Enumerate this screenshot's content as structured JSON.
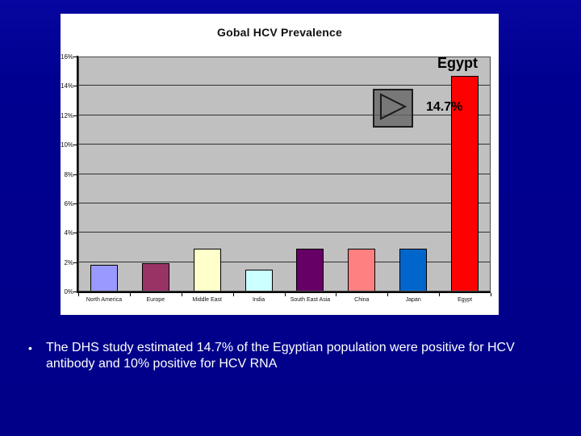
{
  "slide": {
    "background_color": "#000090",
    "bullet": {
      "marker": "•",
      "text": "The DHS study estimated 14.7% of the Egyptian population were positive for HCV antibody and 10% positive for HCV RNA"
    }
  },
  "annotations": {
    "egypt_label": "Egypt",
    "egypt_value": "14.7%"
  },
  "icons": {
    "action_button": "triangle-right-icon"
  },
  "chart_data": {
    "type": "bar",
    "title": "Gobal HCV Prevalence",
    "categories": [
      "North America",
      "Europe",
      "Middle East",
      "India",
      "South East Asia",
      "China",
      "Japan",
      "Egypt"
    ],
    "values": [
      1.8,
      1.9,
      2.9,
      1.5,
      2.9,
      2.9,
      2.9,
      14.7
    ],
    "bar_colors": [
      "#9999FF",
      "#993366",
      "#FFFFCC",
      "#CCFFFF",
      "#660066",
      "#FF8080",
      "#0066CC",
      "#FF0000"
    ],
    "xlabel": "",
    "ylabel": "",
    "ylim": [
      0,
      16
    ],
    "y_tick_step": 2,
    "y_tick_labels": [
      "0%",
      "2%",
      "4%",
      "6%",
      "8%",
      "10%",
      "12%",
      "14%",
      "16%"
    ],
    "grid": true,
    "legend": false,
    "plot_background": "#C0C0C0"
  }
}
